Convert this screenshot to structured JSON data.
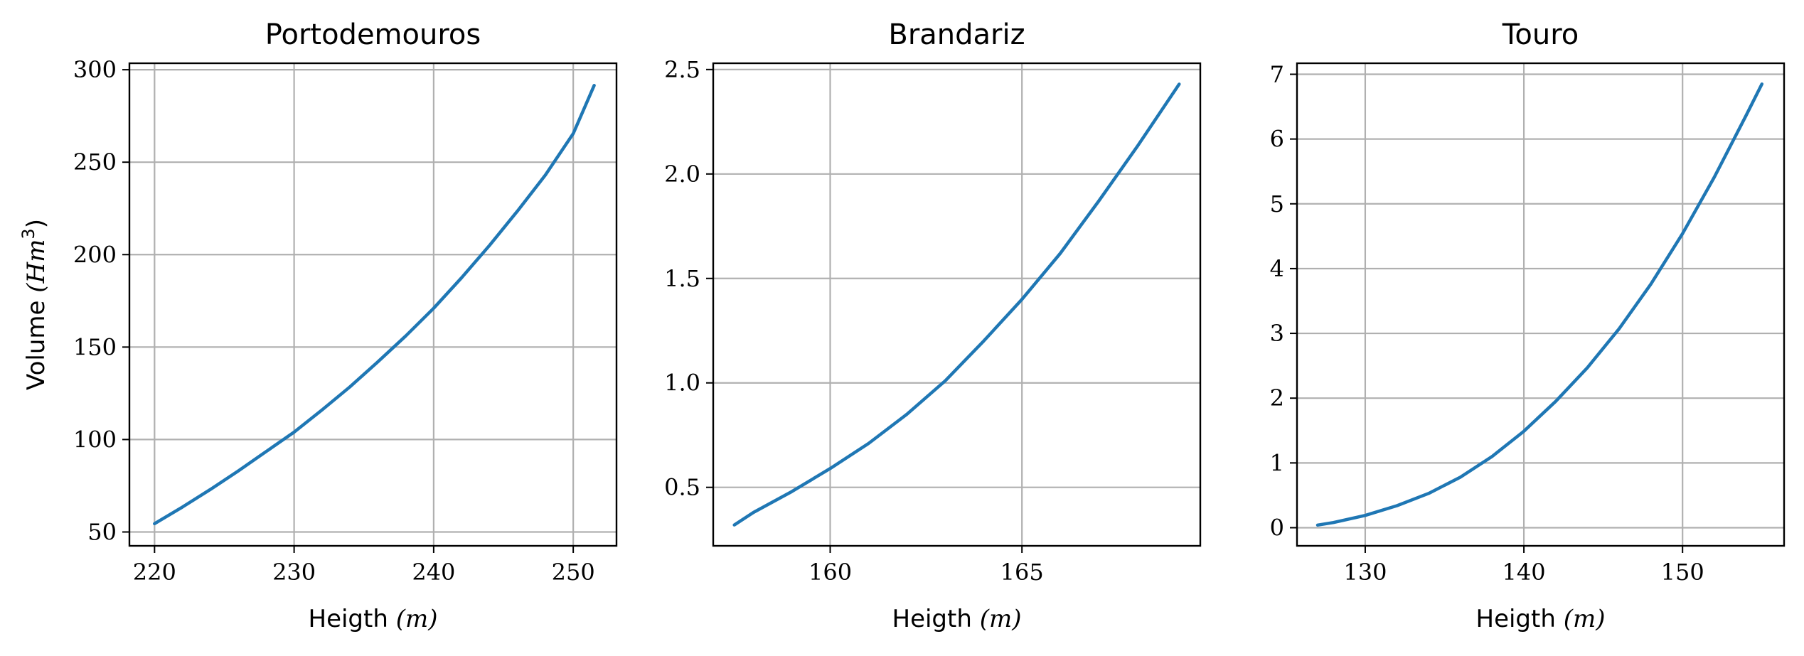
{
  "chart_data": [
    {
      "type": "line",
      "title": "Portodemouros",
      "xlabel": {
        "text": "Heigth ",
        "math": "(m)"
      },
      "ylabel": {
        "text": "Volume ",
        "math": "(Hm",
        "sup": "3",
        "close": ")"
      },
      "xlim": [
        218.2,
        253.1
      ],
      "ylim": [
        42.5,
        303.5
      ],
      "xticks": [
        220,
        230,
        240,
        250
      ],
      "yticks": [
        50,
        100,
        150,
        200,
        250,
        300
      ],
      "grid": true,
      "color": "#1f77b4",
      "series": [
        {
          "x": [
            220,
            222,
            224,
            226,
            228,
            230,
            232,
            234,
            236,
            238,
            240,
            242,
            244,
            246,
            248,
            250,
            251.5
          ],
          "y": [
            54.5,
            63.5,
            73.0,
            83.0,
            93.5,
            104.0,
            116.0,
            128.5,
            142.0,
            156.0,
            171.0,
            187.5,
            205.0,
            223.5,
            243.0,
            265.5,
            291.5
          ]
        }
      ]
    },
    {
      "type": "line",
      "title": "Brandariz",
      "xlabel": {
        "text": "Heigth ",
        "math": "(m)"
      },
      "ylabel": null,
      "xlim": [
        156.95,
        169.65
      ],
      "ylim": [
        0.22,
        2.53
      ],
      "xticks": [
        160,
        165
      ],
      "yticks": [
        0.5,
        1.0,
        1.5,
        2.0,
        2.5
      ],
      "yticklabels": [
        "0.5",
        "1.0",
        "1.5",
        "2.0",
        "2.5"
      ],
      "grid": true,
      "color": "#1f77b4",
      "series": [
        {
          "x": [
            157.5,
            158,
            159,
            160,
            161,
            162,
            163,
            164,
            165,
            166,
            167,
            168,
            169.1
          ],
          "y": [
            0.32,
            0.38,
            0.48,
            0.59,
            0.71,
            0.85,
            1.01,
            1.2,
            1.4,
            1.62,
            1.87,
            2.13,
            2.43
          ]
        }
      ]
    },
    {
      "type": "line",
      "title": "Touro",
      "xlabel": {
        "text": "Heigth ",
        "math": "(m)"
      },
      "ylabel": null,
      "xlim": [
        125.7,
        156.4
      ],
      "ylim": [
        -0.28,
        7.17
      ],
      "xticks": [
        130,
        140,
        150
      ],
      "yticks": [
        0,
        1,
        2,
        3,
        4,
        5,
        6,
        7
      ],
      "grid": true,
      "color": "#1f77b4",
      "series": [
        {
          "x": [
            127,
            128,
            130,
            132,
            134,
            136,
            138,
            140,
            142,
            144,
            146,
            148,
            150,
            152,
            154,
            155
          ],
          "y": [
            0.04,
            0.08,
            0.19,
            0.34,
            0.53,
            0.78,
            1.1,
            1.49,
            1.95,
            2.47,
            3.07,
            3.76,
            4.54,
            5.41,
            6.36,
            6.85
          ]
        }
      ]
    }
  ]
}
